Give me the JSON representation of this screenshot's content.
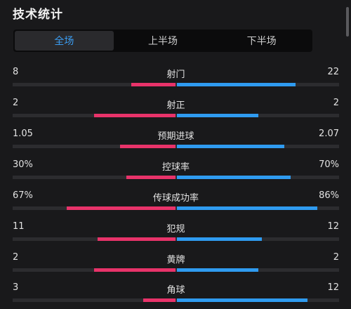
{
  "header": {
    "title": "技术统计"
  },
  "tabs": [
    {
      "label": "全场",
      "active": true
    },
    {
      "label": "上半场",
      "active": false
    },
    {
      "label": "下半场",
      "active": false
    }
  ],
  "colors": {
    "home": "#e8336a",
    "away": "#2f9bf0",
    "active_tab_text": "#3b9cf0"
  },
  "stats": [
    {
      "label": "射门",
      "home": "8",
      "away": "22",
      "home_share": 0.27,
      "away_share": 0.73
    },
    {
      "label": "射正",
      "home": "2",
      "away": "2",
      "home_share": 0.5,
      "away_share": 0.5
    },
    {
      "label": "预期进球",
      "home": "1.05",
      "away": "2.07",
      "home_share": 0.34,
      "away_share": 0.66
    },
    {
      "label": "控球率",
      "home": "30%",
      "away": "70%",
      "home_share": 0.3,
      "away_share": 0.7
    },
    {
      "label": "传球成功率",
      "home": "67%",
      "away": "86%",
      "home_share": 0.67,
      "away_share": 0.86
    },
    {
      "label": "犯规",
      "home": "11",
      "away": "12",
      "home_share": 0.48,
      "away_share": 0.52
    },
    {
      "label": "黄牌",
      "home": "2",
      "away": "2",
      "home_share": 0.5,
      "away_share": 0.5
    },
    {
      "label": "角球",
      "home": "3",
      "away": "12",
      "home_share": 0.2,
      "away_share": 0.8
    }
  ]
}
